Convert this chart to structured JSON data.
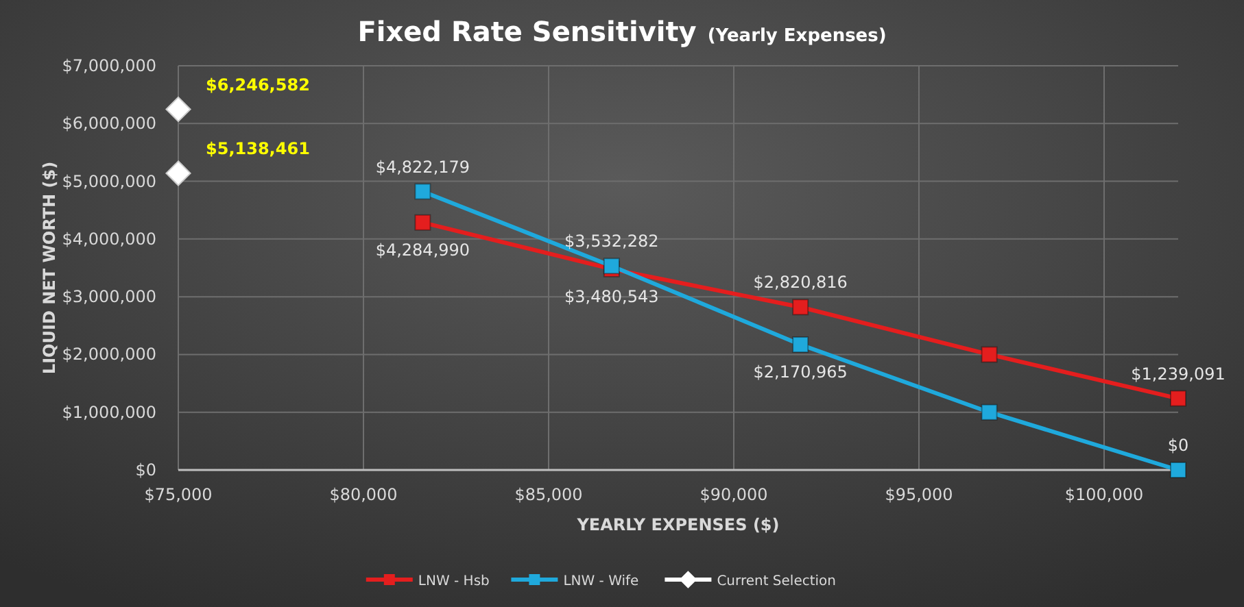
{
  "chart_data": {
    "type": "line",
    "title": "Fixed Rate Sensitivity",
    "subtitle": "(Yearly Expenses)",
    "xlabel": "YEARLY  EXPENSES ($)",
    "ylabel": "LIQUID  NET  WORTH ($)",
    "xlim": [
      75000,
      102000
    ],
    "xticks": [
      {
        "value": 75000,
        "label": "$75,000"
      },
      {
        "value": 80000,
        "label": "$80,000"
      },
      {
        "value": 85000,
        "label": "$85,000"
      },
      {
        "value": 90000,
        "label": "$90,000"
      },
      {
        "value": 95000,
        "label": "$95,000"
      },
      {
        "value": 100000,
        "label": "$100,000"
      }
    ],
    "ylim": [
      0,
      7000000
    ],
    "yticks": [
      {
        "value": 0,
        "label": "$0"
      },
      {
        "value": 1000000,
        "label": "$1,000,000"
      },
      {
        "value": 2000000,
        "label": "$2,000,000"
      },
      {
        "value": 3000000,
        "label": "$3,000,000"
      },
      {
        "value": 4000000,
        "label": "$4,000,000"
      },
      {
        "value": 5000000,
        "label": "$5,000,000"
      },
      {
        "value": 6000000,
        "label": "$6,000,000"
      },
      {
        "value": 7000000,
        "label": "$7,000,000"
      }
    ],
    "grid": true,
    "legend": "bottom",
    "series": [
      {
        "name": "LNW - Hsb",
        "marker": "square",
        "color": "#e41e1e",
        "x": [
          81600,
          86700,
          91800,
          96900,
          102000
        ],
        "values": [
          4284990,
          3480543,
          2820816,
          2000000,
          1239091
        ],
        "value_labels": [
          "$4,284,990",
          "$3,480,543",
          "$2,820,816",
          null,
          "$1,239,091"
        ]
      },
      {
        "name": "LNW - Wife",
        "marker": "square",
        "color": "#1fa9dc",
        "x": [
          81600,
          86700,
          91800,
          96900,
          102000
        ],
        "values": [
          4822179,
          3532282,
          2170965,
          1000000,
          0
        ],
        "value_labels": [
          "$4,822,179",
          "$3,532,282",
          "$2,170,965",
          null,
          "$0"
        ]
      },
      {
        "name": "Current Selection",
        "type": "scatter",
        "marker": "diamond",
        "color": "#ffffff",
        "x": [
          75000,
          75000
        ],
        "values": [
          6246582,
          5138461
        ],
        "value_labels": [
          "$6,246,582",
          "$5,138,461"
        ]
      }
    ]
  }
}
